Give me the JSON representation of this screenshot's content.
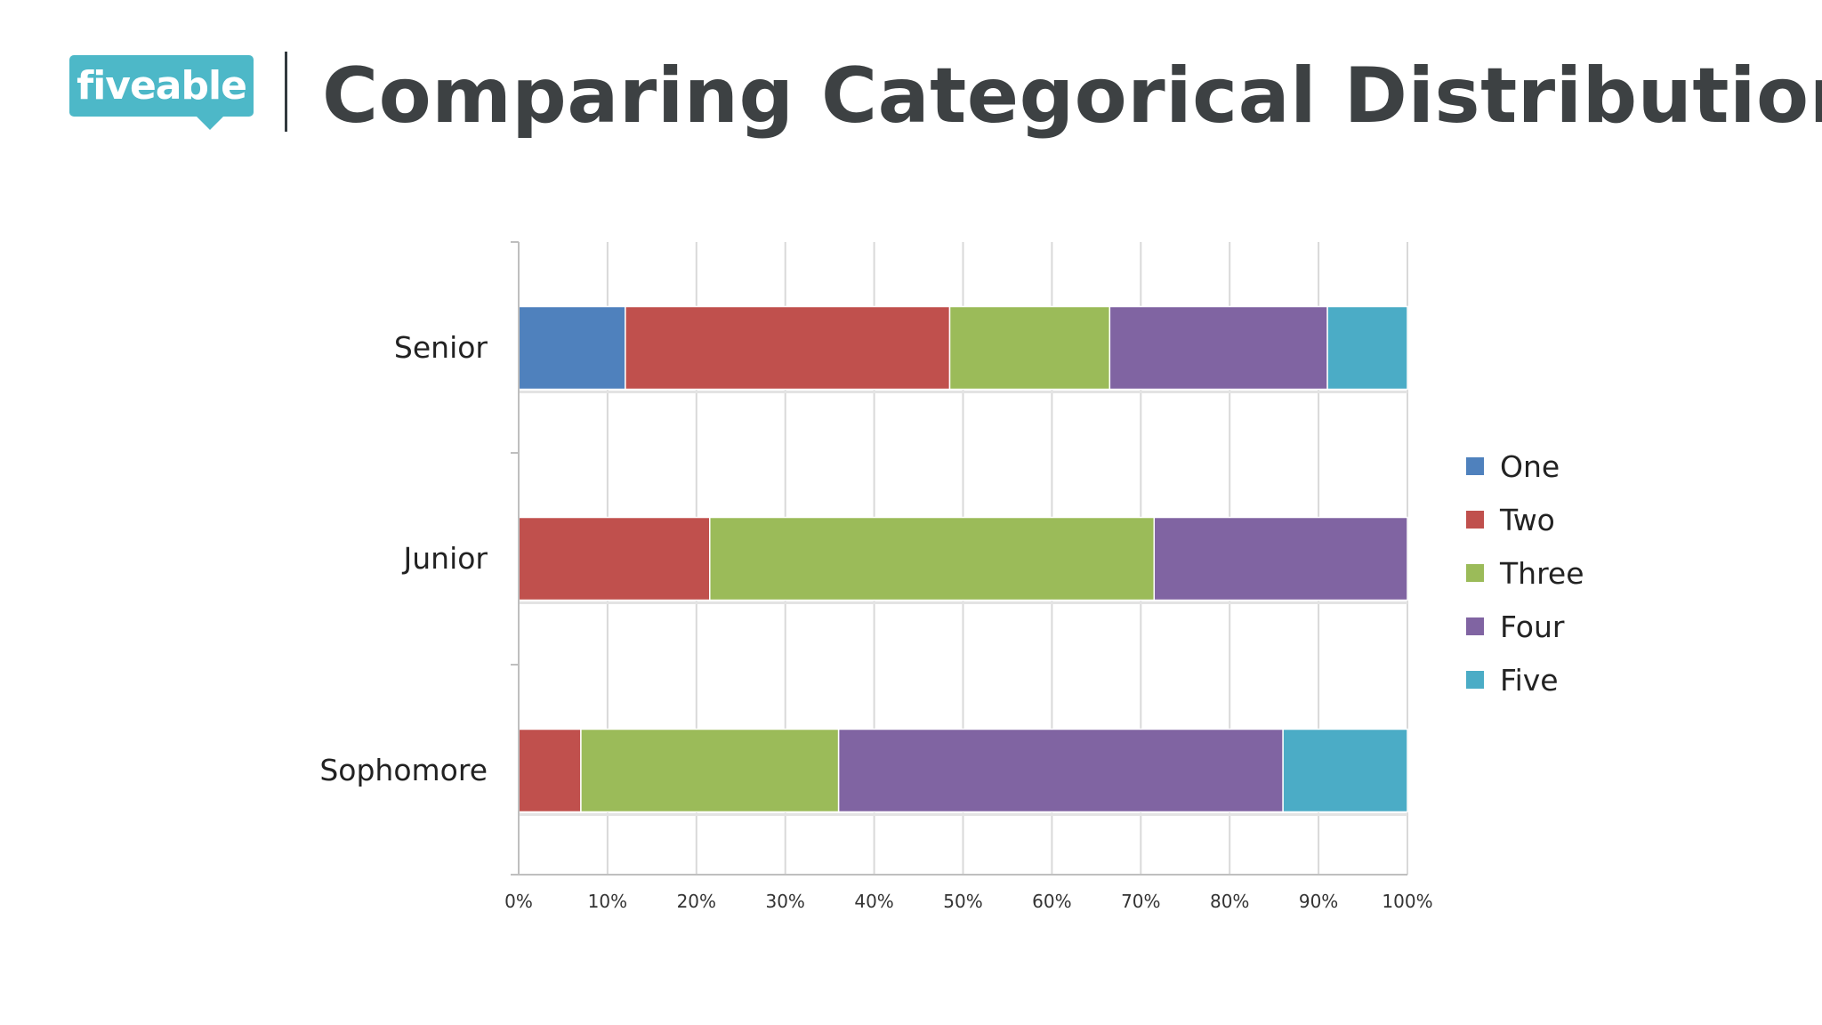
{
  "header": {
    "logo_text": "fiveable",
    "title": "Comparing Categorical Distributions"
  },
  "colors": {
    "logo": "#4db8c8",
    "One": "#4f81bd",
    "Two": "#c0504d",
    "Three": "#9bbb59",
    "Four": "#8064a2",
    "Five": "#4bacc6",
    "grid": "#d9d9d9",
    "axis": "#bfbfbf"
  },
  "chart_data": {
    "type": "bar",
    "orientation": "horizontal",
    "stacked": true,
    "percent": true,
    "categories": [
      "Senior",
      "Junior",
      "Sophomore"
    ],
    "series": [
      {
        "name": "One",
        "values": [
          12,
          0,
          0
        ]
      },
      {
        "name": "Two",
        "values": [
          36.5,
          21.5,
          7
        ]
      },
      {
        "name": "Three",
        "values": [
          18,
          50,
          29
        ]
      },
      {
        "name": "Four",
        "values": [
          24.5,
          28.5,
          50
        ]
      },
      {
        "name": "Five",
        "values": [
          9,
          0,
          14
        ]
      }
    ],
    "x_ticks": [
      "0%",
      "10%",
      "20%",
      "30%",
      "40%",
      "50%",
      "60%",
      "70%",
      "80%",
      "90%",
      "100%"
    ],
    "xlim": [
      0,
      100
    ],
    "grid": true,
    "legend_position": "right"
  }
}
